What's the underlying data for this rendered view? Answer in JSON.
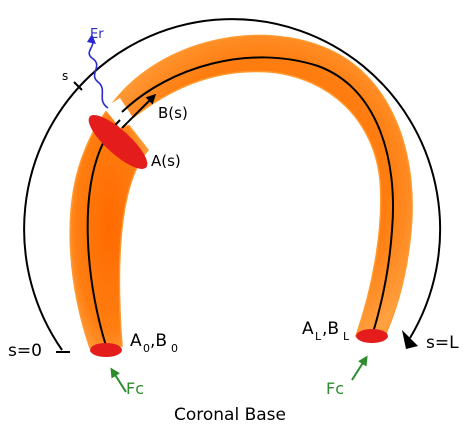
{
  "diagram": {
    "labels": {
      "er": "Er",
      "s_mark": "s",
      "b_of_s": "B(s)",
      "a_of_s": "A(s)",
      "s_zero": "s=0",
      "s_l": "s=L",
      "a0_main": "A",
      "a0_sub": "0",
      "b0_main": ",B",
      "b0_sub": "0",
      "al_main": "A",
      "al_sub": "L",
      "bl_main": ",B",
      "bl_sub": "L",
      "fc_left": "Fc",
      "fc_right": "Fc",
      "caption": "Coronal Base"
    },
    "colors": {
      "tube_outer": "#ff8c1a",
      "tube_inner": "#ff6a00",
      "tube_core": "#ff7a0d",
      "footpoint": "#e51c1c",
      "cross_section": "#e51c1c",
      "centerline": "#000000",
      "outer_arc": "#000000",
      "force_arrow": "#2e8b2e",
      "er_wave": "#2a2ad0"
    }
  }
}
